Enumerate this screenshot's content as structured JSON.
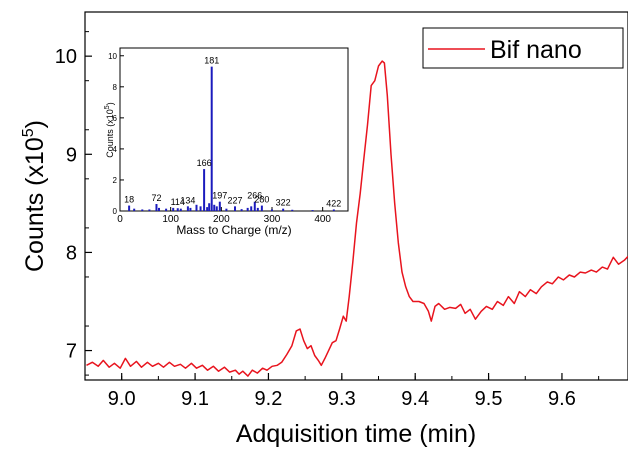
{
  "chart_data": [
    {
      "type": "line",
      "xlabel": "Adquisition time (min)",
      "ylabel_base": "Counts (x10",
      "ylabel_exp": "5",
      "ylabel_close": ")",
      "xlim": [
        8.95,
        9.69
      ],
      "ylim": [
        6.7,
        10.45
      ],
      "xticks": [
        "9.0",
        "9.1",
        "9.2",
        "9.3",
        "9.4",
        "9.5",
        "9.6"
      ],
      "yticks": [
        "7",
        "8",
        "9",
        "10"
      ],
      "legend_position": "top-right",
      "series": [
        {
          "name": "Bif nano",
          "color": "#e8141e",
          "points": [
            [
              8.952,
              6.85
            ],
            [
              8.96,
              6.88
            ],
            [
              8.968,
              6.84
            ],
            [
              8.975,
              6.9
            ],
            [
              8.983,
              6.83
            ],
            [
              8.99,
              6.87
            ],
            [
              8.998,
              6.82
            ],
            [
              9.005,
              6.92
            ],
            [
              9.012,
              6.84
            ],
            [
              9.02,
              6.89
            ],
            [
              9.027,
              6.83
            ],
            [
              9.035,
              6.88
            ],
            [
              9.042,
              6.84
            ],
            [
              9.05,
              6.87
            ],
            [
              9.057,
              6.83
            ],
            [
              9.065,
              6.88
            ],
            [
              9.072,
              6.84
            ],
            [
              9.08,
              6.86
            ],
            [
              9.087,
              6.82
            ],
            [
              9.095,
              6.87
            ],
            [
              9.102,
              6.82
            ],
            [
              9.11,
              6.85
            ],
            [
              9.117,
              6.8
            ],
            [
              9.125,
              6.84
            ],
            [
              9.132,
              6.79
            ],
            [
              9.14,
              6.83
            ],
            [
              9.147,
              6.78
            ],
            [
              9.155,
              6.8
            ],
            [
              9.16,
              6.76
            ],
            [
              9.165,
              6.79
            ],
            [
              9.172,
              6.74
            ],
            [
              9.178,
              6.8
            ],
            [
              9.185,
              6.77
            ],
            [
              9.192,
              6.82
            ],
            [
              9.198,
              6.8
            ],
            [
              9.205,
              6.84
            ],
            [
              9.212,
              6.85
            ],
            [
              9.218,
              6.88
            ],
            [
              9.225,
              6.96
            ],
            [
              9.232,
              7.05
            ],
            [
              9.238,
              7.2
            ],
            [
              9.243,
              7.22
            ],
            [
              9.248,
              7.1
            ],
            [
              9.253,
              7.02
            ],
            [
              9.258,
              7.05
            ],
            [
              9.263,
              6.95
            ],
            [
              9.268,
              6.9
            ],
            [
              9.272,
              6.85
            ],
            [
              9.277,
              6.92
            ],
            [
              9.282,
              7.0
            ],
            [
              9.287,
              7.08
            ],
            [
              9.292,
              7.1
            ],
            [
              9.297,
              7.22
            ],
            [
              9.302,
              7.35
            ],
            [
              9.306,
              7.3
            ],
            [
              9.31,
              7.55
            ],
            [
              9.315,
              7.9
            ],
            [
              9.32,
              8.3
            ],
            [
              9.325,
              8.6
            ],
            [
              9.33,
              8.95
            ],
            [
              9.335,
              9.3
            ],
            [
              9.34,
              9.7
            ],
            [
              9.345,
              9.75
            ],
            [
              9.35,
              9.9
            ],
            [
              9.355,
              9.95
            ],
            [
              9.358,
              9.93
            ],
            [
              9.362,
              9.6
            ],
            [
              9.367,
              9.0
            ],
            [
              9.372,
              8.5
            ],
            [
              9.377,
              8.1
            ],
            [
              9.382,
              7.8
            ],
            [
              9.387,
              7.65
            ],
            [
              9.392,
              7.55
            ],
            [
              9.397,
              7.5
            ],
            [
              9.405,
              7.5
            ],
            [
              9.412,
              7.48
            ],
            [
              9.418,
              7.4
            ],
            [
              9.422,
              7.3
            ],
            [
              9.427,
              7.45
            ],
            [
              9.432,
              7.48
            ],
            [
              9.44,
              7.42
            ],
            [
              9.447,
              7.44
            ],
            [
              9.455,
              7.43
            ],
            [
              9.462,
              7.47
            ],
            [
              9.468,
              7.38
            ],
            [
              9.475,
              7.42
            ],
            [
              9.482,
              7.32
            ],
            [
              9.49,
              7.4
            ],
            [
              9.497,
              7.45
            ],
            [
              9.505,
              7.42
            ],
            [
              9.512,
              7.5
            ],
            [
              9.52,
              7.46
            ],
            [
              9.527,
              7.55
            ],
            [
              9.535,
              7.48
            ],
            [
              9.542,
              7.6
            ],
            [
              9.55,
              7.55
            ],
            [
              9.557,
              7.62
            ],
            [
              9.565,
              7.58
            ],
            [
              9.572,
              7.65
            ],
            [
              9.58,
              7.7
            ],
            [
              9.587,
              7.68
            ],
            [
              9.595,
              7.75
            ],
            [
              9.602,
              7.72
            ],
            [
              9.61,
              7.77
            ],
            [
              9.617,
              7.75
            ],
            [
              9.625,
              7.8
            ],
            [
              9.632,
              7.79
            ],
            [
              9.64,
              7.82
            ],
            [
              9.647,
              7.8
            ],
            [
              9.655,
              7.85
            ],
            [
              9.662,
              7.83
            ],
            [
              9.67,
              7.95
            ],
            [
              9.677,
              7.88
            ],
            [
              9.685,
              7.92
            ],
            [
              9.69,
              7.96
            ]
          ]
        }
      ]
    },
    {
      "type": "bar",
      "xlabel": "Mass to Charge (m/z)",
      "ylabel_base": "Counts (x10",
      "ylabel_exp": "5",
      "ylabel_close": ")",
      "xlim": [
        0,
        450
      ],
      "ylim": [
        0,
        10.5
      ],
      "xticks": [
        "0",
        "100",
        "200",
        "300",
        "400"
      ],
      "yticks": [
        "0",
        "2",
        "4",
        "6",
        "8",
        "10"
      ],
      "color": "#1b1bbd",
      "peaks": [
        {
          "mz": 18,
          "value": 0.35,
          "label": "18"
        },
        {
          "mz": 72,
          "value": 0.45,
          "label": "72"
        },
        {
          "mz": 114,
          "value": 0.18,
          "label": "114"
        },
        {
          "mz": 134,
          "value": 0.3,
          "label": "134"
        },
        {
          "mz": 166,
          "value": 2.7,
          "label": "166"
        },
        {
          "mz": 181,
          "value": 9.3,
          "label": "181"
        },
        {
          "mz": 197,
          "value": 0.6,
          "label": "197"
        },
        {
          "mz": 227,
          "value": 0.3,
          "label": "227"
        },
        {
          "mz": 266,
          "value": 0.6,
          "label": "266"
        },
        {
          "mz": 280,
          "value": 0.35,
          "label": "280"
        },
        {
          "mz": 322,
          "value": 0.15,
          "label": "322"
        },
        {
          "mz": 422,
          "value": 0.1,
          "label": "422"
        }
      ],
      "minor_peaks": [
        {
          "mz": 28,
          "value": 0.15
        },
        {
          "mz": 44,
          "value": 0.1
        },
        {
          "mz": 58,
          "value": 0.1
        },
        {
          "mz": 77,
          "value": 0.2
        },
        {
          "mz": 91,
          "value": 0.15
        },
        {
          "mz": 105,
          "value": 0.2
        },
        {
          "mz": 120,
          "value": 0.15
        },
        {
          "mz": 139,
          "value": 0.2
        },
        {
          "mz": 151,
          "value": 0.4
        },
        {
          "mz": 159,
          "value": 0.3
        },
        {
          "mz": 172,
          "value": 0.25
        },
        {
          "mz": 176,
          "value": 0.5
        },
        {
          "mz": 186,
          "value": 0.4
        },
        {
          "mz": 191,
          "value": 0.3
        },
        {
          "mz": 210,
          "value": 0.15
        },
        {
          "mz": 240,
          "value": 0.12
        },
        {
          "mz": 252,
          "value": 0.2
        },
        {
          "mz": 259,
          "value": 0.3
        },
        {
          "mz": 272,
          "value": 0.2
        },
        {
          "mz": 300,
          "value": 0.1
        },
        {
          "mz": 340,
          "value": 0.08
        },
        {
          "mz": 380,
          "value": 0.06
        }
      ]
    }
  ]
}
